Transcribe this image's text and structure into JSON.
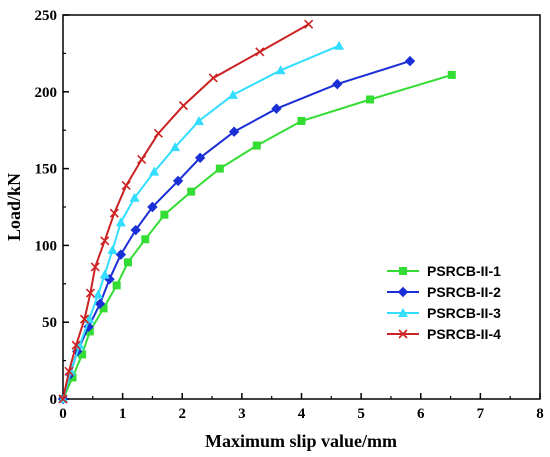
{
  "chart_data": {
    "type": "line",
    "xlabel": "Maximum slip value/mm",
    "ylabel": "Load/kN",
    "xlim": [
      0,
      8
    ],
    "ylim": [
      0,
      250
    ],
    "x_ticks": [
      0,
      1,
      2,
      3,
      4,
      5,
      6,
      7,
      8
    ],
    "y_ticks": [
      0,
      50,
      100,
      150,
      200,
      250
    ],
    "grid": false,
    "legend_position": "lower-right",
    "series": [
      {
        "name": "PSRCB-II-1",
        "color": "#33dd33",
        "marker": "square",
        "points": [
          [
            0.0,
            0
          ],
          [
            0.16,
            14
          ],
          [
            0.32,
            29
          ],
          [
            0.45,
            44
          ],
          [
            0.68,
            59
          ],
          [
            0.9,
            74
          ],
          [
            1.09,
            89
          ],
          [
            1.38,
            104
          ],
          [
            1.7,
            120
          ],
          [
            2.15,
            135
          ],
          [
            2.63,
            150
          ],
          [
            3.25,
            165
          ],
          [
            4.0,
            181
          ],
          [
            5.15,
            195
          ],
          [
            6.52,
            211
          ]
        ]
      },
      {
        "name": "PSRCB-II-2",
        "color": "#1a2fd6",
        "marker": "diamond",
        "points": [
          [
            0.0,
            0
          ],
          [
            0.12,
            16
          ],
          [
            0.24,
            31
          ],
          [
            0.43,
            47
          ],
          [
            0.62,
            62
          ],
          [
            0.78,
            78
          ],
          [
            0.97,
            94
          ],
          [
            1.22,
            110
          ],
          [
            1.5,
            125
          ],
          [
            1.93,
            142
          ],
          [
            2.3,
            157
          ],
          [
            2.87,
            174
          ],
          [
            3.58,
            189
          ],
          [
            4.6,
            205
          ],
          [
            5.82,
            220
          ]
        ]
      },
      {
        "name": "PSRCB-II-3",
        "color": "#33ddff",
        "marker": "triangle",
        "points": [
          [
            0.0,
            0
          ],
          [
            0.13,
            18
          ],
          [
            0.28,
            35
          ],
          [
            0.44,
            52
          ],
          [
            0.59,
            68
          ],
          [
            0.7,
            81
          ],
          [
            0.83,
            97
          ],
          [
            0.97,
            115
          ],
          [
            1.2,
            131
          ],
          [
            1.53,
            148
          ],
          [
            1.88,
            164
          ],
          [
            2.28,
            181
          ],
          [
            2.85,
            198
          ],
          [
            3.65,
            214
          ],
          [
            4.63,
            230
          ]
        ]
      },
      {
        "name": "PSRCB-II-4",
        "color": "#cc2222",
        "marker": "x",
        "points": [
          [
            0.0,
            0
          ],
          [
            0.1,
            18
          ],
          [
            0.22,
            35
          ],
          [
            0.36,
            52
          ],
          [
            0.46,
            69
          ],
          [
            0.54,
            86
          ],
          [
            0.7,
            103
          ],
          [
            0.86,
            121
          ],
          [
            1.06,
            139
          ],
          [
            1.32,
            156
          ],
          [
            1.6,
            173
          ],
          [
            2.02,
            191
          ],
          [
            2.52,
            209
          ],
          [
            3.3,
            226
          ],
          [
            4.12,
            244
          ]
        ]
      }
    ]
  }
}
